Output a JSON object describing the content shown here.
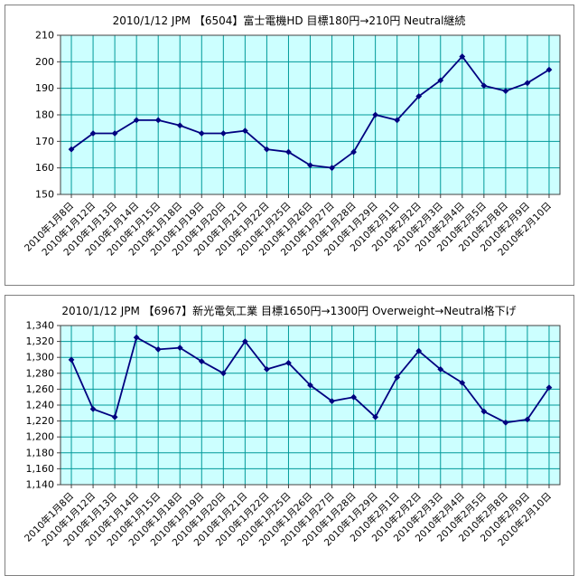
{
  "style": {
    "plot_bg": "#CCFFFF",
    "grid_color": "#009999",
    "line_color": "#000080",
    "marker_color": "#000080",
    "axis_color": "#404040",
    "text_color": "#000000"
  },
  "chart_data": [
    {
      "type": "line",
      "title": "2010/1/12 JPM 【6504】富士電機HD 目標180円→210円 Neutral継続",
      "categories": [
        "2010年1月8日",
        "2010年1月12日",
        "2010年1月13日",
        "2010年1月14日",
        "2010年1月15日",
        "2010年1月18日",
        "2010年1月19日",
        "2010年1月20日",
        "2010年1月21日",
        "2010年1月22日",
        "2010年1月25日",
        "2010年1月26日",
        "2010年1月27日",
        "2010年1月28日",
        "2010年1月29日",
        "2010年2月1日",
        "2010年2月2日",
        "2010年2月3日",
        "2010年2月4日",
        "2010年2月5日",
        "2010年2月8日",
        "2010年2月9日",
        "2010年2月10日"
      ],
      "values": [
        167,
        173,
        173,
        178,
        178,
        176,
        173,
        173,
        174,
        167,
        166,
        161,
        160,
        166,
        180,
        178,
        187,
        193,
        202,
        191,
        189,
        192,
        197
      ],
      "ylim": [
        150,
        210
      ],
      "ytick_step": 10,
      "y_format": "plain",
      "grid": true,
      "legend": "none"
    },
    {
      "type": "line",
      "title": "2010/1/12 JPM 【6967】新光電気工業 目標1650円→1300円 Overweight→Neutral格下げ",
      "categories": [
        "2010年1月8日",
        "2010年1月12日",
        "2010年1月13日",
        "2010年1月14日",
        "2010年1月15日",
        "2010年1月18日",
        "2010年1月19日",
        "2010年1月20日",
        "2010年1月21日",
        "2010年1月22日",
        "2010年1月25日",
        "2010年1月26日",
        "2010年1月27日",
        "2010年1月28日",
        "2010年1月29日",
        "2010年2月1日",
        "2010年2月2日",
        "2010年2月3日",
        "2010年2月4日",
        "2010年2月5日",
        "2010年2月8日",
        "2010年2月9日",
        "2010年2月10日"
      ],
      "values": [
        1297,
        1235,
        1225,
        1325,
        1310,
        1312,
        1295,
        1280,
        1320,
        1285,
        1293,
        1265,
        1245,
        1250,
        1225,
        1275,
        1308,
        1285,
        1268,
        1232,
        1218,
        1222,
        1262
      ],
      "ylim": [
        1140,
        1340
      ],
      "ytick_step": 20,
      "y_format": "comma",
      "grid": true,
      "legend": "none"
    }
  ]
}
